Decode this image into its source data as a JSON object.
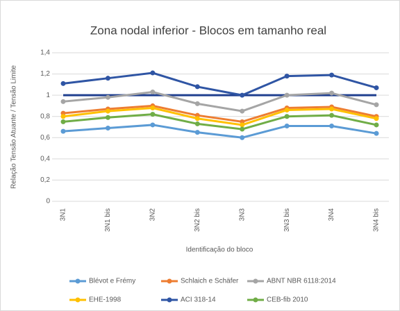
{
  "chart_data": {
    "type": "line",
    "title": "Zona nodal inferior - Blocos em tamanho real",
    "x_label": "Identificação do bloco",
    "y_label": "Relação Tensão Atuante / Tensão Limite",
    "categories": [
      "3N1",
      "3N1 bis",
      "3N2",
      "3N2 bis",
      "3N3",
      "3N3 bis",
      "3N4",
      "3N4 bis"
    ],
    "series": [
      {
        "name": "Blévot e Frémy",
        "color": "#5b9bd5",
        "values": [
          0.66,
          0.69,
          0.72,
          0.65,
          0.6,
          0.71,
          0.71,
          0.64
        ]
      },
      {
        "name": "Schlaich e Schäfer",
        "color": "#ed7d31",
        "values": [
          0.83,
          0.87,
          0.9,
          0.81,
          0.75,
          0.88,
          0.89,
          0.8
        ]
      },
      {
        "name": "ABNT NBR 6118:2014",
        "color": "#a5a5a5",
        "values": [
          0.94,
          0.98,
          1.03,
          0.92,
          0.85,
          1.0,
          1.02,
          0.91
        ]
      },
      {
        "name": "EHE-1998",
        "color": "#ffc000",
        "values": [
          0.8,
          0.85,
          0.88,
          0.78,
          0.72,
          0.86,
          0.87,
          0.78
        ]
      },
      {
        "name": "ACI 318-14",
        "color": "#2f55a4",
        "values": [
          1.11,
          1.16,
          1.21,
          1.08,
          1.0,
          1.18,
          1.19,
          1.07
        ]
      },
      {
        "name": "CEB-fib 2010",
        "color": "#70ad47",
        "values": [
          0.75,
          0.79,
          0.82,
          0.73,
          0.68,
          0.8,
          0.81,
          0.72
        ]
      }
    ],
    "reference_line": {
      "value": 1,
      "color": "#1f3f8f"
    },
    "ylim": [
      0,
      1.4
    ],
    "yticks": [
      0,
      {
        "value": 0.2,
        "label": "0,2"
      },
      {
        "value": 0.4,
        "label": "0,4"
      },
      {
        "value": 0.6,
        "label": "0,6"
      },
      {
        "value": 0.8,
        "label": "0,8"
      },
      1,
      {
        "value": 1.2,
        "label": "1,2"
      },
      {
        "value": 1.4,
        "label": "1,4"
      }
    ],
    "grid": true,
    "legend": "bottom"
  }
}
